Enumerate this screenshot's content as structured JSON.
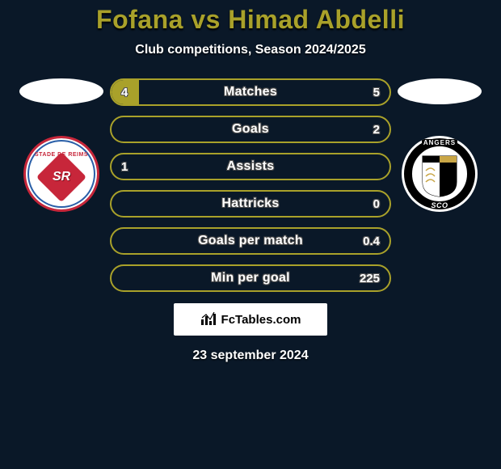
{
  "title": "Fofana vs Himad Abdelli",
  "subtitle": "Club competitions, Season 2024/2025",
  "date": "23 september 2024",
  "attribution": "FcTables.com",
  "colors": {
    "title": "#a9a12a",
    "oval_left": "#ffffff",
    "oval_right": "#ffffff",
    "bar_fill": "#a9a12a",
    "bar_border": "#a9a12a",
    "background": "#0a1828"
  },
  "left_team": {
    "name": "Stade de Reims",
    "crest_top": "STADE DE REIMS",
    "crest_center": "SR",
    "crest_colors": {
      "primary": "#c7263a",
      "secondary": "#2a5fa8",
      "bg": "#ffffff"
    }
  },
  "right_team": {
    "name": "Angers SCO",
    "crest_top": "ANGERS",
    "crest_bottom": "SCO",
    "crest_colors": {
      "primary": "#000000",
      "gold": "#c9a646",
      "bg": "#ffffff"
    }
  },
  "rows": [
    {
      "label": "Matches",
      "left": "4",
      "right": "5",
      "left_fill_pct": 10,
      "right_fill_pct": 0,
      "show_left": true,
      "show_right": true
    },
    {
      "label": "Goals",
      "left": "",
      "right": "2",
      "left_fill_pct": 0,
      "right_fill_pct": 0,
      "show_left": false,
      "show_right": true
    },
    {
      "label": "Assists",
      "left": "1",
      "right": "",
      "left_fill_pct": 0,
      "right_fill_pct": 0,
      "show_left": true,
      "show_right": false
    },
    {
      "label": "Hattricks",
      "left": "",
      "right": "0",
      "left_fill_pct": 0,
      "right_fill_pct": 0,
      "show_left": false,
      "show_right": true
    },
    {
      "label": "Goals per match",
      "left": "",
      "right": "0.4",
      "left_fill_pct": 0,
      "right_fill_pct": 0,
      "show_left": false,
      "show_right": true
    },
    {
      "label": "Min per goal",
      "left": "",
      "right": "225",
      "left_fill_pct": 0,
      "right_fill_pct": 0,
      "show_left": false,
      "show_right": true
    }
  ]
}
